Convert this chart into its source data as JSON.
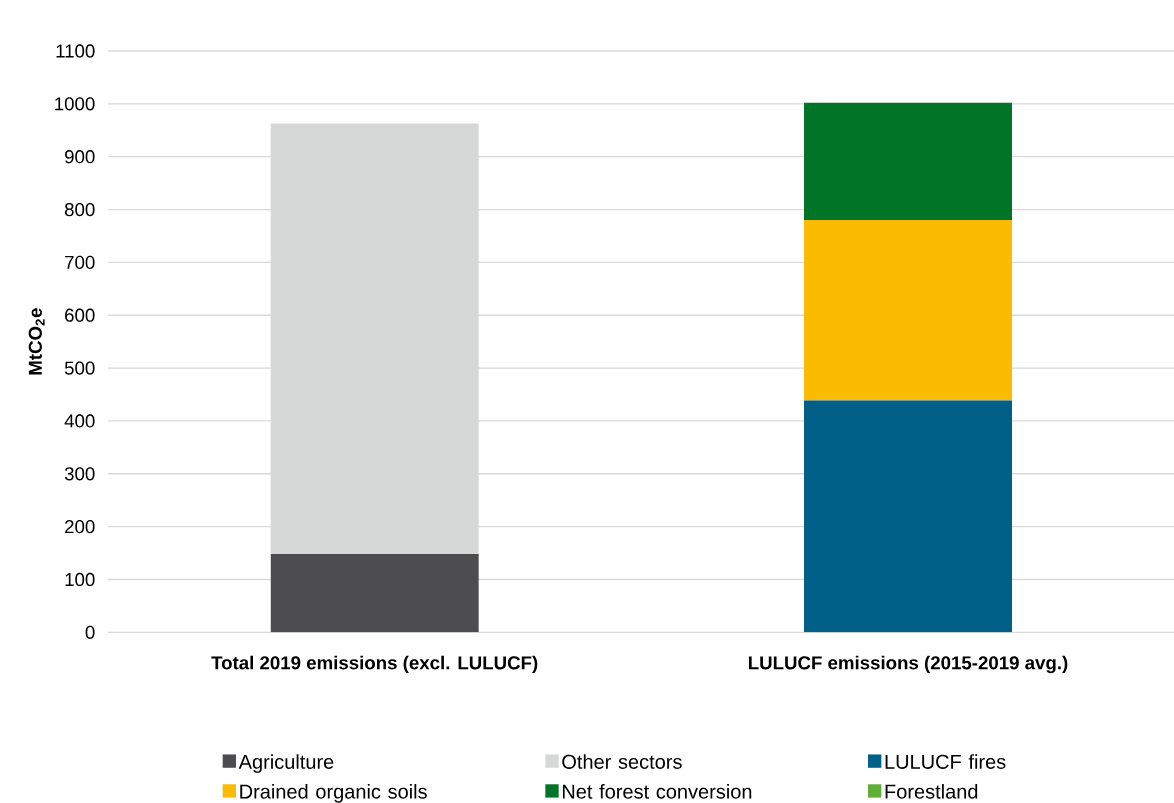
{
  "chart_data": {
    "type": "bar",
    "stacked": true,
    "ylabel": "MtCO$_{2}$e",
    "categories": [
      "Total 2019 emissions (excl. LULUCF)",
      "LULUCF emissions (2015-2019 avg.)"
    ],
    "series": [
      {
        "name": "Agriculture",
        "color": "#4d4d4f",
        "values": [
          148,
          null
        ]
      },
      {
        "name": "Other sectors",
        "color": "#d6d8d7",
        "values": [
          815,
          null
        ]
      },
      {
        "name": "LULUCF fires",
        "color": "#005f86",
        "values": [
          null,
          439
        ]
      },
      {
        "name": "Drained organic soils",
        "color": "#fbbb00",
        "values": [
          null,
          341
        ]
      },
      {
        "name": "Net forest conversion",
        "color": "#027428",
        "values": [
          null,
          222
        ]
      },
      {
        "name": "Forestland",
        "color": "#5fae37",
        "values": [
          null,
          0
        ]
      }
    ],
    "ylim": [
      0,
      1100
    ],
    "yticks": [
      0,
      100,
      200,
      300,
      400,
      500,
      600,
      700,
      800,
      900,
      1000,
      1100
    ],
    "grid": "y",
    "legend": "bottom"
  }
}
